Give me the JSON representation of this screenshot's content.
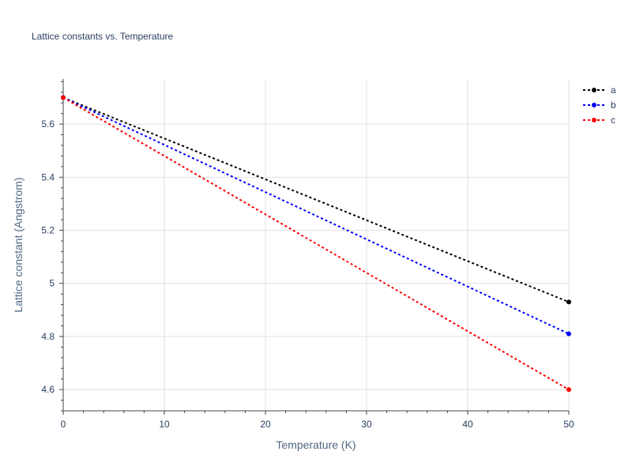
{
  "chart_data": {
    "type": "line",
    "title": "Lattice constants vs. Temperature",
    "xlabel": "Temperature (K)",
    "ylabel": "Lattice constant (Angstrom)",
    "x": [
      0,
      50
    ],
    "xlim": [
      0,
      50
    ],
    "ylim": [
      4.52,
      5.77
    ],
    "xticks": [
      0,
      10,
      20,
      30,
      40,
      50
    ],
    "yticks": [
      4.6,
      4.8,
      5,
      5.2,
      5.4,
      5.6
    ],
    "ytick_labels": [
      "4.6",
      "4.8",
      "5",
      "5.2",
      "5.4",
      "5.6"
    ],
    "grid": true,
    "legend_position": "top-right",
    "series": [
      {
        "name": "a",
        "color": "#000000",
        "values": [
          5.7,
          4.93
        ]
      },
      {
        "name": "b",
        "color": "#0000ff",
        "values": [
          5.7,
          4.81
        ]
      },
      {
        "name": "c",
        "color": "#ff0000",
        "values": [
          5.7,
          4.6
        ]
      }
    ]
  }
}
